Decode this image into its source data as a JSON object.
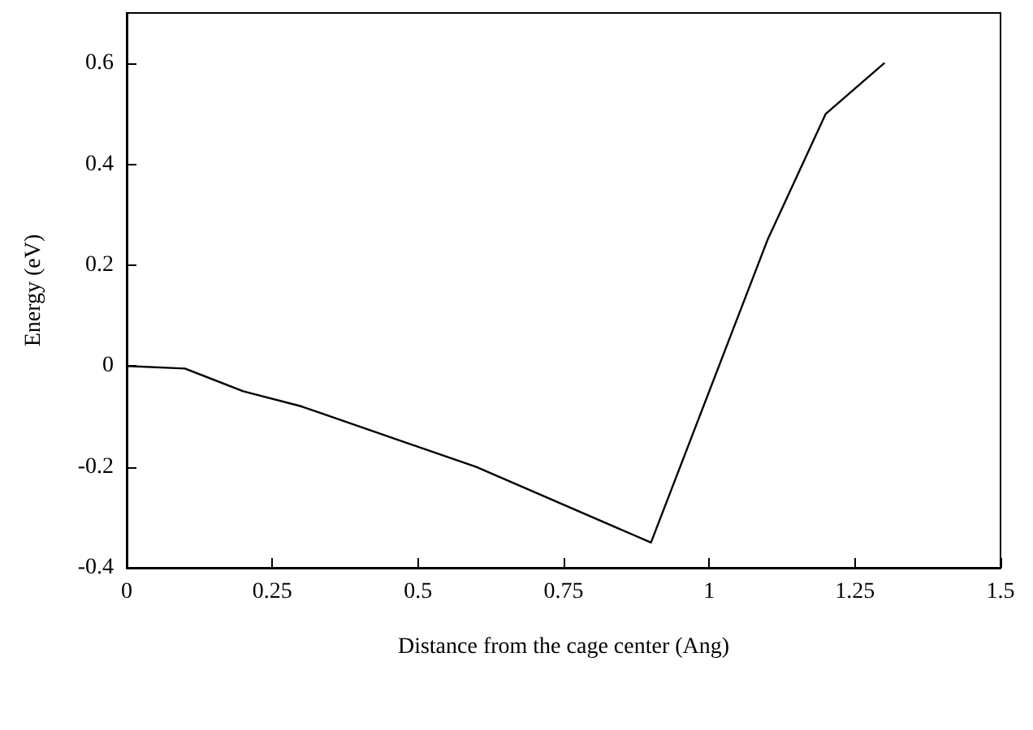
{
  "chart_data": {
    "type": "line",
    "xlabel": "Distance from the cage center (Ang)",
    "ylabel": "Energy (eV)",
    "x": [
      0,
      0.1,
      0.2,
      0.3,
      0.6,
      0.9,
      1.1,
      1.2,
      1.3
    ],
    "series": [
      {
        "color": "#000000",
        "values": [
          0,
          -0.005,
          -0.05,
          -0.08,
          -0.2,
          -0.35,
          0.25,
          0.5,
          0.6
        ]
      }
    ],
    "xlim": [
      0,
      1.5
    ],
    "xticks": [
      0,
      0.25,
      0.5,
      0.75,
      1,
      1.25,
      1.5
    ],
    "ylim": [
      -0.4,
      0.7
    ],
    "yticks": [
      -0.4,
      -0.2,
      0,
      0.2,
      0.4,
      0.6
    ],
    "grid": false,
    "marker": "none",
    "line_style": "solid"
  }
}
